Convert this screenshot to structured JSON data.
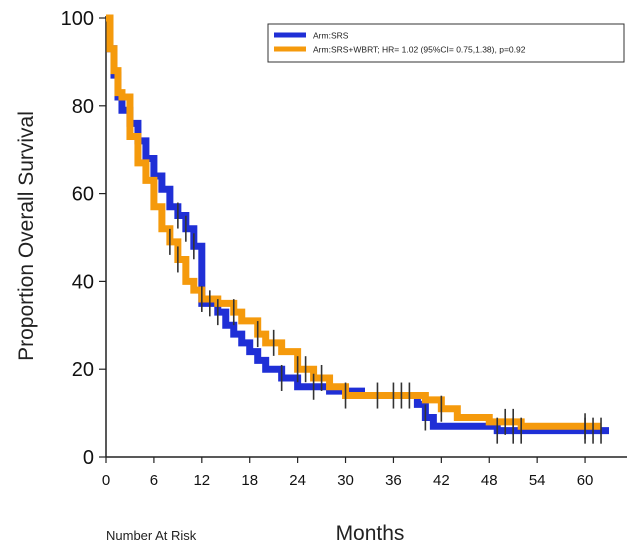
{
  "chart_data": {
    "type": "line",
    "title": "",
    "xlabel": "Months",
    "ylabel": "Proportion Overall Survival",
    "footer_label": "Number At Risk",
    "xlim": [
      0,
      64
    ],
    "ylim": [
      0,
      100
    ],
    "xticks": [
      "0",
      "6",
      "12",
      "18",
      "24",
      "30",
      "36",
      "42",
      "48",
      "54",
      "60"
    ],
    "yticks": [
      "0",
      "20",
      "40",
      "60",
      "80",
      "100"
    ],
    "grid": false,
    "legend_position": "top-right",
    "step": true,
    "series": [
      {
        "name": "Arm:SRS",
        "color": "#1f2fd6",
        "x": [
          0,
          0.5,
          1,
          1.5,
          2,
          3,
          4,
          5,
          6,
          7,
          8,
          9,
          10,
          11,
          12,
          14,
          15,
          16,
          17,
          18,
          19,
          20,
          22,
          24,
          26,
          28,
          30,
          32,
          36,
          39,
          40,
          41,
          48,
          49,
          52,
          56,
          60,
          62,
          63
        ],
        "y": [
          100,
          93,
          87,
          82,
          79,
          76,
          72,
          68,
          64,
          61,
          57,
          55,
          52,
          48,
          35,
          33,
          30,
          28,
          26,
          24,
          22,
          20,
          18,
          16,
          16,
          15,
          15,
          14,
          14,
          12,
          9,
          7,
          7,
          6,
          6,
          6,
          6,
          6,
          6
        ],
        "censor_x": [
          9,
          10,
          11,
          13,
          14,
          22,
          26,
          34,
          36,
          40,
          49,
          51,
          52,
          60,
          61,
          62
        ]
      },
      {
        "name": "Arm:SRS+WBRT; HR= 1.02  (95%CI= 0.75,1.38), p=0.92",
        "color": "#f59a0c",
        "x": [
          0,
          0.5,
          1,
          1.5,
          2,
          3,
          4,
          5,
          6,
          7,
          8,
          9,
          10,
          11,
          12,
          14,
          16,
          17,
          19,
          20,
          22,
          24,
          26,
          28,
          30,
          32,
          36,
          40,
          42,
          44,
          46,
          48,
          50,
          52,
          56,
          60,
          62
        ],
        "y": [
          100,
          93,
          88,
          83,
          82,
          73,
          67,
          63,
          57,
          52,
          49,
          45,
          40,
          38,
          36,
          35,
          33,
          31,
          28,
          26,
          24,
          20,
          18,
          16,
          14,
          14,
          14,
          13,
          11,
          9,
          9,
          8,
          8,
          7,
          7,
          7,
          7
        ],
        "censor_x": [
          8,
          9,
          12,
          16,
          19,
          21,
          24,
          25,
          27,
          30,
          37,
          38,
          42,
          50,
          51,
          60
        ]
      }
    ]
  }
}
